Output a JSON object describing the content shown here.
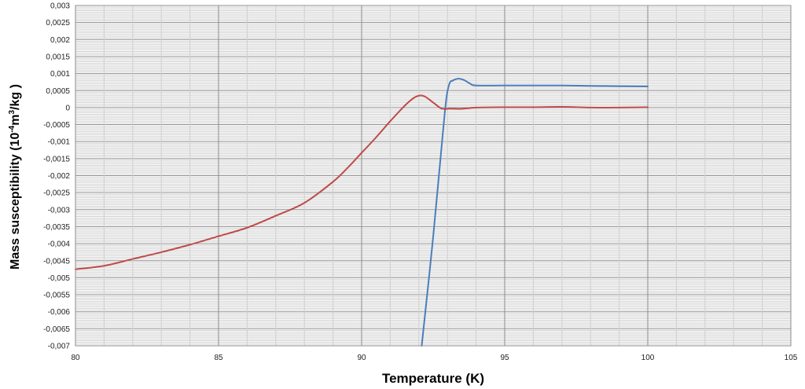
{
  "chart_data": {
    "type": "line",
    "title": "",
    "xlabel": "Temperature (K)",
    "ylabel_main": "Mass  susceptibility (10",
    "ylabel_exp1": "-4",
    "ylabel_mid": "m",
    "ylabel_exp2": "3",
    "ylabel_end": "/kg )",
    "xlim": [
      80,
      105
    ],
    "ylim": [
      -0.007,
      0.003
    ],
    "x_ticks": [
      80,
      85,
      90,
      95,
      100,
      105
    ],
    "x_tick_labels": [
      "80",
      "85",
      "90",
      "95",
      "100",
      "105"
    ],
    "y_ticks": [
      0.003,
      0.0025,
      0.002,
      0.0015,
      0.001,
      0.0005,
      0,
      -0.0005,
      -0.001,
      -0.0015,
      -0.002,
      -0.0025,
      -0.003,
      -0.0035,
      -0.004,
      -0.0045,
      -0.005,
      -0.0055,
      -0.006,
      -0.0065,
      -0.007
    ],
    "y_tick_labels": [
      "0,003",
      "0,0025",
      "0,002",
      "0,0015",
      "0,001",
      "0,0005",
      "0",
      "-0,0005",
      "-0,001",
      "-0,0015",
      "-0,002",
      "-0,0025",
      "-0,003",
      "-0,0035",
      "-0,004",
      "-0,0045",
      "-0,005",
      "-0,0055",
      "-0,006",
      "-0,0065",
      "-0,007"
    ],
    "grid": true,
    "legend": "none",
    "series": [
      {
        "color": "#4a7ebb",
        "x": [
          92.1,
          92.5,
          92.9,
          93.05,
          93.2,
          93.4,
          93.6,
          93.8,
          94.0,
          95,
          96,
          97,
          98,
          99,
          100
        ],
        "y": [
          -0.007,
          -0.0038,
          -0.0002,
          0.00065,
          0.0008,
          0.00085,
          0.0008,
          0.0007,
          0.00065,
          0.00065,
          0.00065,
          0.00065,
          0.00064,
          0.00063,
          0.00062
        ]
      },
      {
        "color": "#be4b48",
        "x": [
          80,
          81,
          82,
          83,
          84,
          85,
          86,
          87,
          88,
          89,
          89.5,
          90,
          90.5,
          91,
          91.5,
          91.8,
          92.0,
          92.2,
          92.5,
          92.8,
          93.1,
          93.4,
          93.7,
          94,
          95,
          96,
          97,
          98,
          99,
          100
        ],
        "y": [
          -0.00475,
          -0.00465,
          -0.00445,
          -0.00425,
          -0.00403,
          -0.00378,
          -0.00353,
          -0.00318,
          -0.0028,
          -0.00218,
          -0.00178,
          -0.00133,
          -0.00088,
          -0.0004,
          5e-05,
          0.00027,
          0.00035,
          0.00033,
          0.00015,
          -3e-05,
          -3e-05,
          -4e-05,
          -2e-05,
          0.0,
          1e-05,
          1e-05,
          2e-05,
          0.0,
          0.0,
          1e-05
        ]
      }
    ]
  }
}
